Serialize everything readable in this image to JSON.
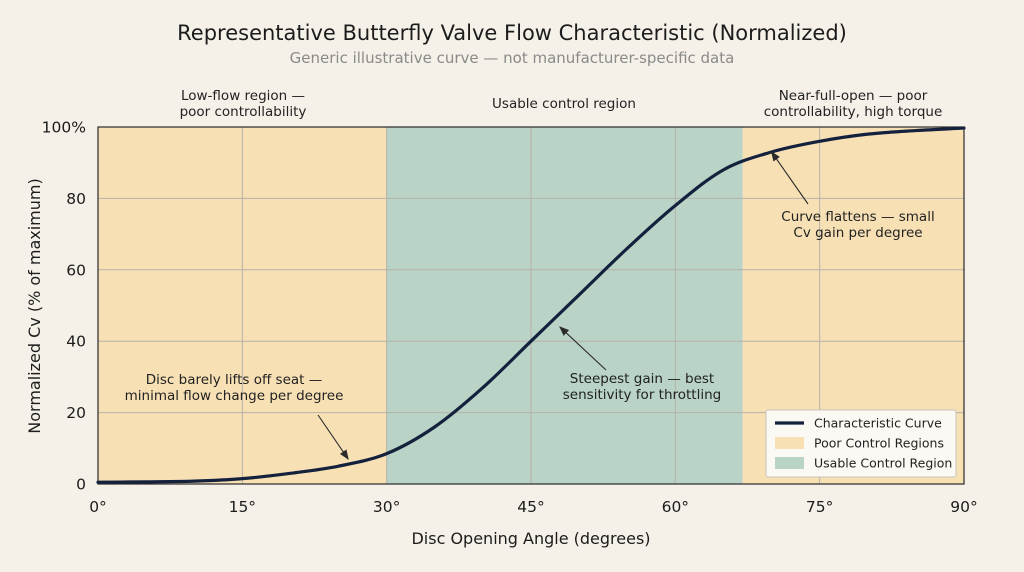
{
  "chart_data": {
    "type": "line",
    "title": "Representative Butterfly Valve Flow Characteristic (Normalized)",
    "subtitle": "Generic illustrative curve — not manufacturer-specific data",
    "xlabel": "Disc Opening Angle (degrees)",
    "ylabel": "Normalized Cv (% of maximum)",
    "xlim": [
      0,
      90
    ],
    "ylim": [
      0,
      100
    ],
    "x_ticks": [
      0,
      15,
      30,
      45,
      60,
      75,
      90
    ],
    "x_tick_labels": [
      "0°",
      "15°",
      "30°",
      "45°",
      "60°",
      "75°",
      "90°"
    ],
    "y_ticks": [
      0,
      20,
      40,
      60,
      80,
      100
    ],
    "y_tick_labels": [
      "0",
      "20",
      "40",
      "60",
      "80",
      "100%"
    ],
    "grid": true,
    "legend_position": "bottom-right",
    "colors": {
      "curve": "#14213d",
      "poor_region": "#f8e0b5",
      "usable_region": "#b9d3c6",
      "grid": "#b5b2aa",
      "background": "#f5f1e8"
    },
    "regions": [
      {
        "kind": "poor",
        "x_start": 0,
        "x_end": 30,
        "label": [
          "Low-flow region —",
          "poor controllability"
        ]
      },
      {
        "kind": "usable",
        "x_start": 30,
        "x_end": 67,
        "label": [
          "Usable control region"
        ]
      },
      {
        "kind": "poor",
        "x_start": 67,
        "x_end": 90,
        "label": [
          "Near-full-open — poor",
          "controllability, high torque"
        ]
      }
    ],
    "series": [
      {
        "name": "Characteristic Curve",
        "x": [
          0,
          5,
          10,
          15,
          20,
          25,
          30,
          35,
          40,
          45,
          50,
          55,
          60,
          65,
          70,
          75,
          80,
          85,
          90
        ],
        "y": [
          0.5,
          0.6,
          0.8,
          1.5,
          3,
          5,
          8.5,
          16,
          27,
          40,
          53,
          66,
          78,
          88,
          93,
          96,
          98,
          99,
          99.7
        ]
      }
    ],
    "annotations": [
      {
        "lines": [
          "Disc barely lifts off seat —",
          "minimal flow change per degree"
        ],
        "point": [
          26,
          7
        ]
      },
      {
        "lines": [
          "Steepest gain — best",
          "sensitivity for throttling"
        ],
        "point": [
          48,
          44
        ]
      },
      {
        "lines": [
          "Curve flattens — small",
          "Cv gain per degree"
        ],
        "point": [
          70,
          93
        ]
      }
    ],
    "legend": [
      {
        "kind": "line",
        "label": "Characteristic Curve"
      },
      {
        "kind": "poor",
        "label": "Poor Control Regions"
      },
      {
        "kind": "usable",
        "label": "Usable Control Region"
      }
    ]
  }
}
